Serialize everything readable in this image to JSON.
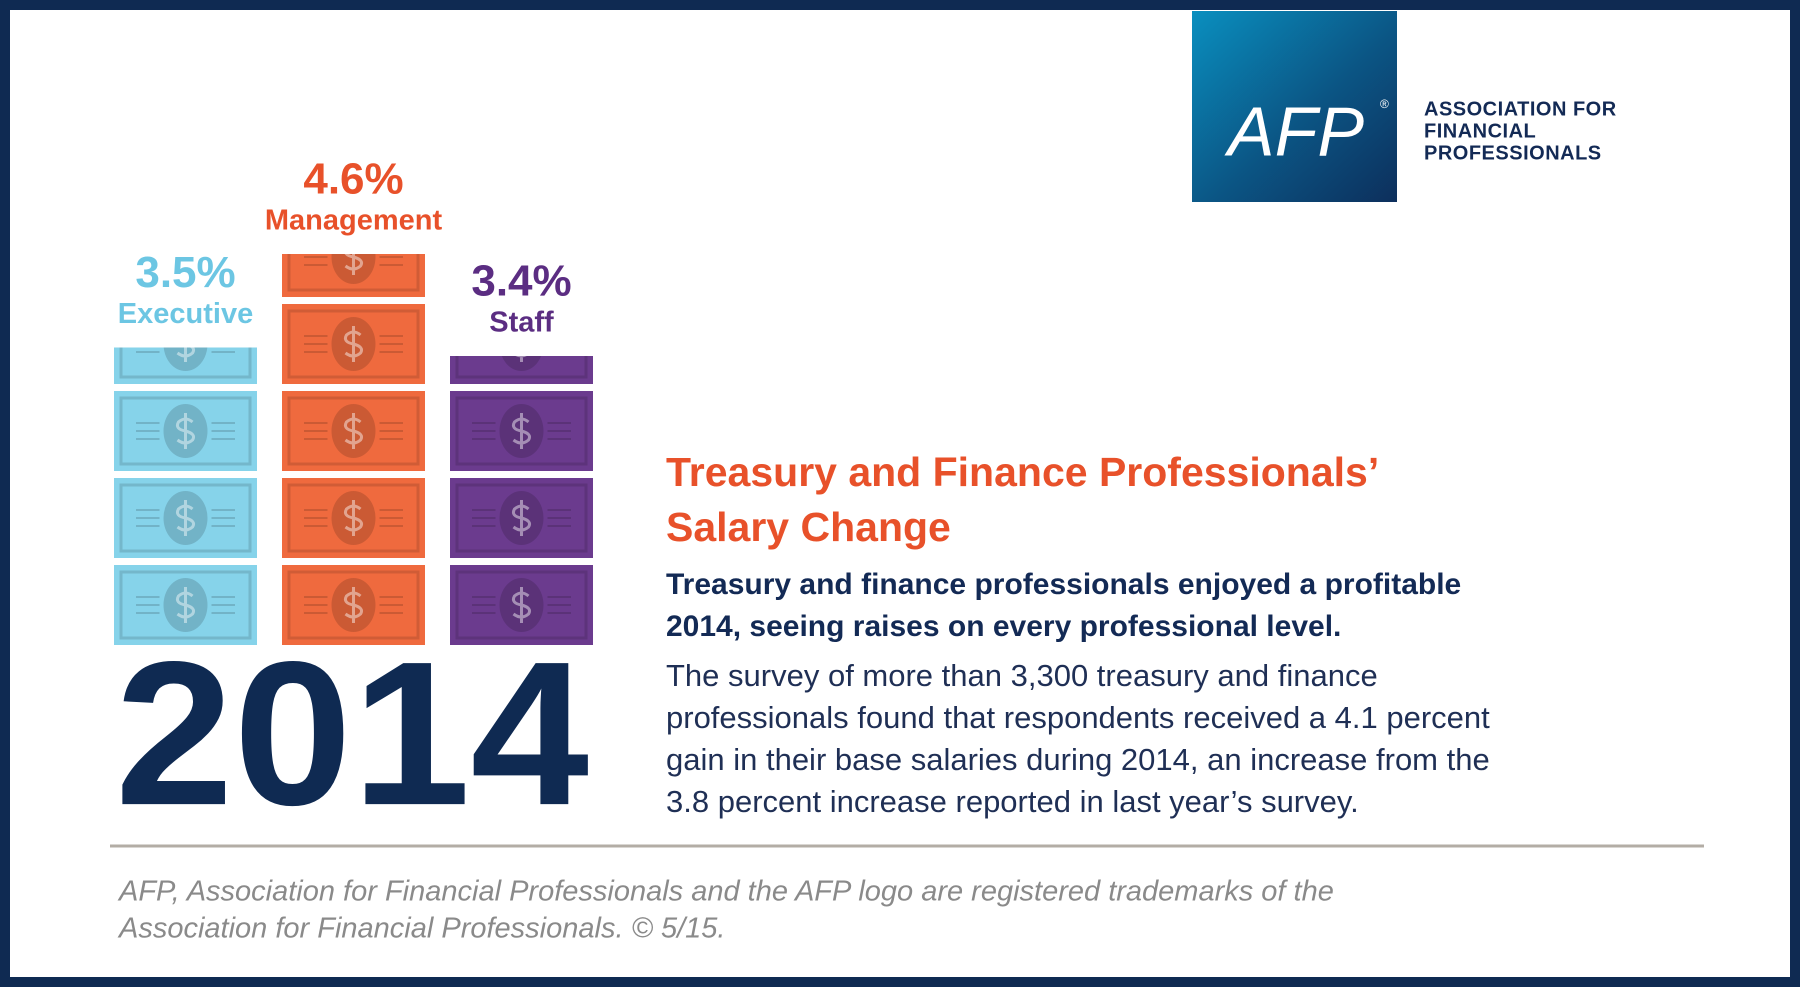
{
  "chart_data": {
    "type": "pictogram-bar",
    "categories": [
      "Executive",
      "Management",
      "Staff"
    ],
    "values": [
      3.5,
      4.6,
      3.4
    ],
    "value_labels": [
      "3.5%",
      "4.6%",
      "3.4%"
    ],
    "colors": [
      "#86d3ea",
      "#ef6a3e",
      "#6b3b8e"
    ],
    "label_colors": [
      "#6cc6e3",
      "#e8512a",
      "#5b2d82"
    ],
    "annotation": "2014"
  },
  "logo": {
    "mark": "AFP",
    "registered": "®",
    "name": [
      "ASSOCIATION FOR",
      "FINANCIAL",
      "PROFESSIONALS"
    ]
  },
  "headline": [
    "Treasury and Finance Professionals’",
    "Salary Change"
  ],
  "subheadline": [
    "Treasury and finance professionals enjoyed a profitable",
    "2014, seeing raises on every professional level."
  ],
  "body": [
    "The survey of more than 3,300 treasury and finance",
    "professionals found that respondents received a 4.1 percent",
    "gain in their base salaries during 2014, an increase from the",
    "3.8 percent increase reported in last year’s survey."
  ],
  "footer": [
    "AFP, Association for Financial Professionals and the AFP logo are registered trademarks of the",
    "Association for Financial Professionals. © 5/15."
  ]
}
